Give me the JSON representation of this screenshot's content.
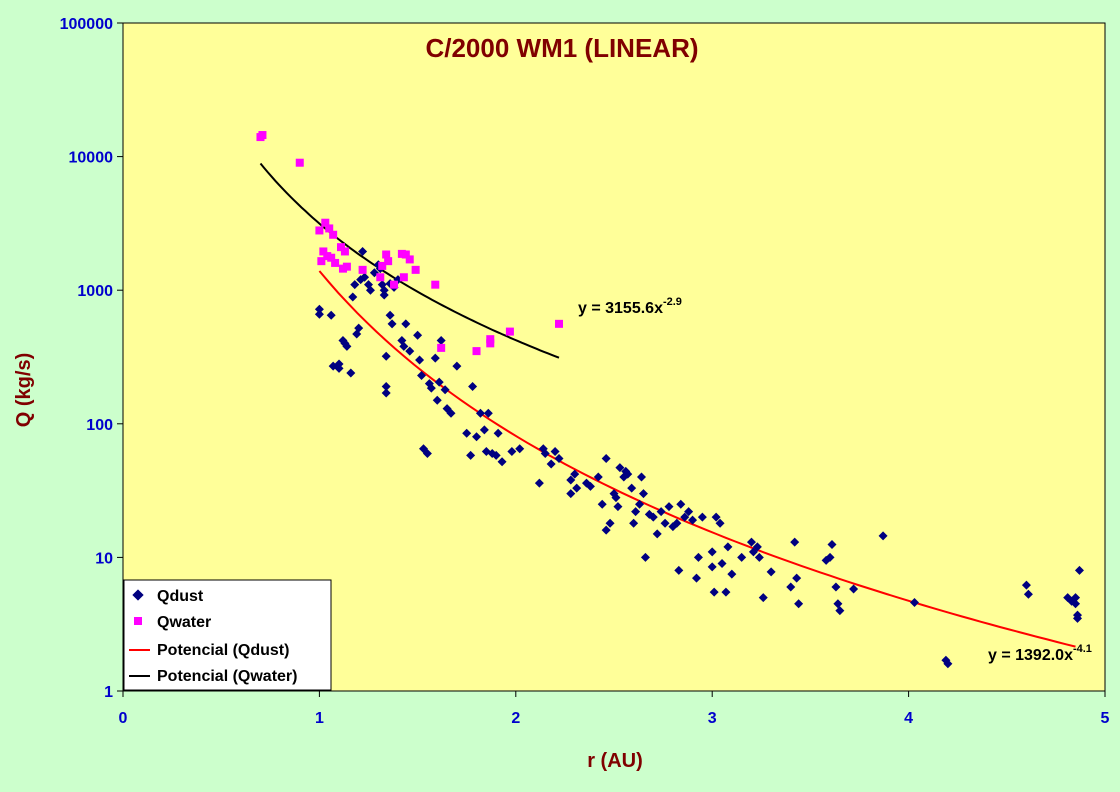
{
  "chart_data": {
    "type": "scatter",
    "title": "C/2000 WM1 (LINEAR)",
    "xlabel": "r (AU)",
    "ylabel": "Q (kg/s)",
    "xlim": [
      0,
      5
    ],
    "ylim": [
      1,
      100000
    ],
    "y_scale": "log",
    "x_ticks": [
      "0",
      "1",
      "2",
      "3",
      "4",
      "5"
    ],
    "y_ticks": [
      "1",
      "10",
      "100",
      "1000",
      "10000",
      "100000"
    ],
    "grid": false,
    "legend_position": "bottom-left",
    "colors": {
      "page_background": "#ccffcc",
      "plot_background": "#ffff99",
      "qdust": "#000080",
      "qwater": "#ff00ff",
      "fit_dust": "#ff0000",
      "fit_water": "#000000",
      "tick_labels": "#0000cc",
      "axis_titles": "#800000"
    },
    "series": [
      {
        "name": "Qdust",
        "kind": "scatter",
        "marker": "diamond",
        "color": "#000080",
        "points": [
          [
            1.0,
            720
          ],
          [
            1.0,
            660
          ],
          [
            1.06,
            650
          ],
          [
            1.07,
            270
          ],
          [
            1.1,
            260
          ],
          [
            1.1,
            280
          ],
          [
            1.12,
            420
          ],
          [
            1.13,
            400
          ],
          [
            1.14,
            380
          ],
          [
            1.16,
            240
          ],
          [
            1.17,
            890
          ],
          [
            1.18,
            1100
          ],
          [
            1.19,
            470
          ],
          [
            1.2,
            520
          ],
          [
            1.21,
            1200
          ],
          [
            1.22,
            1950
          ],
          [
            1.23,
            1250
          ],
          [
            1.25,
            1100
          ],
          [
            1.26,
            1000
          ],
          [
            1.28,
            1350
          ],
          [
            1.3,
            1550
          ],
          [
            1.31,
            1450
          ],
          [
            1.32,
            1100
          ],
          [
            1.33,
            920
          ],
          [
            1.33,
            1000
          ],
          [
            1.34,
            320
          ],
          [
            1.34,
            190
          ],
          [
            1.34,
            170
          ],
          [
            1.36,
            1120
          ],
          [
            1.36,
            650
          ],
          [
            1.37,
            560
          ],
          [
            1.38,
            1050
          ],
          [
            1.4,
            1200
          ],
          [
            1.42,
            420
          ],
          [
            1.43,
            380
          ],
          [
            1.44,
            560
          ],
          [
            1.46,
            350
          ],
          [
            1.5,
            460
          ],
          [
            1.51,
            300
          ],
          [
            1.52,
            230
          ],
          [
            1.53,
            65
          ],
          [
            1.55,
            60
          ],
          [
            1.56,
            200
          ],
          [
            1.57,
            185
          ],
          [
            1.59,
            310
          ],
          [
            1.6,
            150
          ],
          [
            1.61,
            205
          ],
          [
            1.62,
            420
          ],
          [
            1.64,
            180
          ],
          [
            1.65,
            130
          ],
          [
            1.67,
            120
          ],
          [
            1.7,
            270
          ],
          [
            1.75,
            85
          ],
          [
            1.77,
            58
          ],
          [
            1.78,
            190
          ],
          [
            1.8,
            80
          ],
          [
            1.82,
            120
          ],
          [
            1.84,
            90
          ],
          [
            1.85,
            62
          ],
          [
            1.86,
            120
          ],
          [
            1.88,
            60
          ],
          [
            1.9,
            58
          ],
          [
            1.91,
            85
          ],
          [
            1.93,
            52
          ],
          [
            1.98,
            62
          ],
          [
            2.02,
            65
          ],
          [
            2.12,
            36
          ],
          [
            2.14,
            65
          ],
          [
            2.15,
            60
          ],
          [
            2.18,
            50
          ],
          [
            2.2,
            62
          ],
          [
            2.22,
            55
          ],
          [
            2.28,
            38
          ],
          [
            2.28,
            30
          ],
          [
            2.3,
            42
          ],
          [
            2.31,
            33
          ],
          [
            2.36,
            36
          ],
          [
            2.38,
            34
          ],
          [
            2.42,
            40
          ],
          [
            2.44,
            25
          ],
          [
            2.46,
            55
          ],
          [
            2.46,
            16
          ],
          [
            2.48,
            18
          ],
          [
            2.5,
            30
          ],
          [
            2.51,
            28
          ],
          [
            2.52,
            24
          ],
          [
            2.53,
            47
          ],
          [
            2.55,
            40
          ],
          [
            2.56,
            44
          ],
          [
            2.57,
            42
          ],
          [
            2.59,
            33
          ],
          [
            2.6,
            18
          ],
          [
            2.61,
            22
          ],
          [
            2.63,
            25
          ],
          [
            2.64,
            40
          ],
          [
            2.65,
            30
          ],
          [
            2.66,
            10
          ],
          [
            2.68,
            21
          ],
          [
            2.7,
            20
          ],
          [
            2.72,
            15
          ],
          [
            2.74,
            22
          ],
          [
            2.76,
            18
          ],
          [
            2.78,
            24
          ],
          [
            2.8,
            17
          ],
          [
            2.82,
            18
          ],
          [
            2.83,
            8
          ],
          [
            2.84,
            25
          ],
          [
            2.86,
            20
          ],
          [
            2.88,
            22
          ],
          [
            2.9,
            19
          ],
          [
            2.92,
            7
          ],
          [
            2.93,
            10
          ],
          [
            2.95,
            20
          ],
          [
            3.0,
            11
          ],
          [
            3.0,
            8.5
          ],
          [
            3.01,
            5.5
          ],
          [
            3.02,
            20
          ],
          [
            3.04,
            18
          ],
          [
            3.05,
            9
          ],
          [
            3.07,
            5.5
          ],
          [
            3.08,
            12
          ],
          [
            3.1,
            7.5
          ],
          [
            3.15,
            10
          ],
          [
            3.2,
            13
          ],
          [
            3.21,
            11
          ],
          [
            3.23,
            12
          ],
          [
            3.24,
            10
          ],
          [
            3.26,
            5
          ],
          [
            3.3,
            7.8
          ],
          [
            3.4,
            6
          ],
          [
            3.42,
            13
          ],
          [
            3.43,
            7
          ],
          [
            3.44,
            4.5
          ],
          [
            3.58,
            9.5
          ],
          [
            3.6,
            10
          ],
          [
            3.61,
            12.5
          ],
          [
            3.63,
            6
          ],
          [
            3.64,
            4.5
          ],
          [
            3.65,
            4
          ],
          [
            3.72,
            5.8
          ],
          [
            3.87,
            14.5
          ],
          [
            4.03,
            4.6
          ],
          [
            4.19,
            1.7
          ],
          [
            4.2,
            1.6
          ],
          [
            4.6,
            6.2
          ],
          [
            4.61,
            5.3
          ],
          [
            4.81,
            5
          ],
          [
            4.83,
            4.7
          ],
          [
            4.85,
            5
          ],
          [
            4.85,
            4.5
          ],
          [
            4.86,
            3.7
          ],
          [
            4.86,
            3.5
          ],
          [
            4.87,
            8
          ]
        ]
      },
      {
        "name": "Qwater",
        "kind": "scatter",
        "marker": "square",
        "color": "#ff00ff",
        "points": [
          [
            0.7,
            14000
          ],
          [
            0.71,
            14500
          ],
          [
            0.9,
            9000
          ],
          [
            1.0,
            2800
          ],
          [
            1.01,
            1650
          ],
          [
            1.02,
            1950
          ],
          [
            1.03,
            3200
          ],
          [
            1.04,
            1800
          ],
          [
            1.05,
            2900
          ],
          [
            1.06,
            1750
          ],
          [
            1.07,
            2600
          ],
          [
            1.08,
            1600
          ],
          [
            1.11,
            2100
          ],
          [
            1.12,
            1450
          ],
          [
            1.13,
            1950
          ],
          [
            1.14,
            1500
          ],
          [
            1.22,
            1420
          ],
          [
            1.31,
            1250
          ],
          [
            1.32,
            1520
          ],
          [
            1.34,
            1850
          ],
          [
            1.35,
            1650
          ],
          [
            1.38,
            1100
          ],
          [
            1.42,
            1870
          ],
          [
            1.43,
            1250
          ],
          [
            1.44,
            1850
          ],
          [
            1.46,
            1700
          ],
          [
            1.49,
            1420
          ],
          [
            1.59,
            1100
          ],
          [
            1.62,
            370
          ],
          [
            1.8,
            350
          ],
          [
            1.87,
            400
          ],
          [
            1.87,
            430
          ],
          [
            1.97,
            490
          ],
          [
            2.22,
            560
          ]
        ]
      },
      {
        "name": "Potencial (Qdust)",
        "kind": "power_fit",
        "color": "#ff0000",
        "coefficient": 1392.0,
        "exponent": -4.1,
        "x_range": [
          1.0,
          4.85
        ],
        "equation_label": "y = 1392.0x",
        "equation_exponent": "-4.1"
      },
      {
        "name": "Potencial (Qwater)",
        "kind": "power_fit",
        "color": "#000000",
        "coefficient": 3155.6,
        "exponent": -2.9,
        "x_range": [
          0.7,
          2.22
        ],
        "equation_label": "y = 3155.6x",
        "equation_exponent": "-2.9"
      }
    ]
  }
}
